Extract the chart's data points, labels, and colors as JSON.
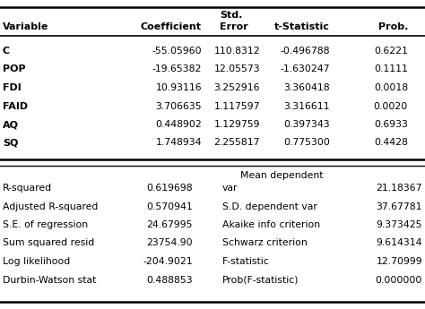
{
  "header_std": "Std.",
  "header_error": "Error",
  "col_headers": [
    "Variable",
    "Coefficient",
    "Error",
    "t-Statistic",
    "Prob."
  ],
  "data_rows": [
    [
      "C",
      "-55.05960",
      "110.8312",
      "-0.496788",
      "0.6221"
    ],
    [
      "POP",
      "-19.65382",
      "12.05573",
      "-1.630247",
      "0.1111"
    ],
    [
      "FDI",
      "10.93116",
      "3.252916",
      "3.360418",
      "0.0018"
    ],
    [
      "FAID",
      "3.706635",
      "1.117597",
      "3.316611",
      "0.0020"
    ],
    [
      "AQ",
      "0.448902",
      "1.129759",
      "0.397343",
      "0.6933"
    ],
    [
      "SQ",
      "1.748934",
      "2.255817",
      "0.775300",
      "0.4428"
    ]
  ],
  "stats_left_labels": [
    "R-squared",
    "Adjusted R-squared",
    "S.E. of regression",
    "Sum squared resid",
    "Log likelihood",
    "Durbin-Watson stat"
  ],
  "stats_left_vals": [
    "0.619698",
    "0.570941",
    "24.67995",
    "23754.90",
    "-204.9021",
    "0.488853"
  ],
  "stats_right_header1": "Mean dependent",
  "stats_right_header2": "var",
  "stats_right_labels": [
    "var",
    "S.D. dependent var",
    "Akaike info criterion",
    "Schwarz criterion",
    "F-statistic",
    "Prob(F-statistic)"
  ],
  "stats_right_vals": [
    "21.18367",
    "37.67781",
    "9.373425",
    "9.614314",
    "12.70999",
    "0.000000"
  ],
  "bg_color": "#ffffff",
  "text_color": "#000000",
  "line_color": "#000000"
}
